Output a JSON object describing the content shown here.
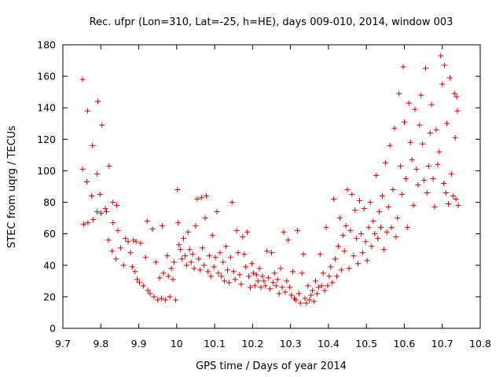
{
  "chart_data": {
    "type": "scatter",
    "title": "Rec. ufpr (Lon=310, Lat=-25, h=HE), days 009-010, 2014, window 003",
    "xlabel": "GPS time / Days of year 2014",
    "ylabel": "STEC from uqrg / TECUs",
    "xlim": [
      9.7,
      10.8
    ],
    "ylim": [
      0,
      180
    ],
    "xticks": [
      "9.7",
      "9.8",
      "9.9",
      "10",
      "10.1",
      "10.2",
      "10.3",
      "10.4",
      "10.5",
      "10.6",
      "10.7",
      "10.8"
    ],
    "yticks": [
      "0",
      "20",
      "40",
      "60",
      "80",
      "100",
      "120",
      "140",
      "160",
      "180"
    ],
    "marker": "+",
    "series_color": "#d40000",
    "points": [
      [
        9.752,
        158
      ],
      [
        9.765,
        138
      ],
      [
        9.778,
        116
      ],
      [
        9.792,
        144
      ],
      [
        9.803,
        129
      ],
      [
        9.822,
        103
      ],
      [
        9.752,
        101
      ],
      [
        9.763,
        93
      ],
      [
        9.776,
        84
      ],
      [
        9.79,
        98
      ],
      [
        9.798,
        85
      ],
      [
        9.815,
        74
      ],
      [
        9.832,
        80
      ],
      [
        9.842,
        78
      ],
      [
        9.755,
        66
      ],
      [
        9.766,
        67
      ],
      [
        9.78,
        69
      ],
      [
        9.79,
        74
      ],
      [
        9.8,
        73
      ],
      [
        9.812,
        76
      ],
      [
        9.82,
        56
      ],
      [
        9.832,
        67
      ],
      [
        9.845,
        62
      ],
      [
        9.83,
        49
      ],
      [
        9.84,
        44
      ],
      [
        9.852,
        51
      ],
      [
        9.86,
        40
      ],
      [
        9.865,
        57
      ],
      [
        9.872,
        55
      ],
      [
        9.878,
        48
      ],
      [
        9.883,
        39
      ],
      [
        9.886,
        56
      ],
      [
        9.89,
        36
      ],
      [
        9.893,
        55
      ],
      [
        9.896,
        31
      ],
      [
        9.902,
        29
      ],
      [
        9.905,
        54
      ],
      [
        9.912,
        27
      ],
      [
        9.918,
        45
      ],
      [
        9.922,
        68
      ],
      [
        9.924,
        24
      ],
      [
        9.93,
        22
      ],
      [
        9.936,
        63
      ],
      [
        9.94,
        20
      ],
      [
        9.945,
        42
      ],
      [
        9.95,
        18
      ],
      [
        9.955,
        32
      ],
      [
        9.96,
        19
      ],
      [
        9.962,
        65
      ],
      [
        9.965,
        35
      ],
      [
        9.97,
        18
      ],
      [
        9.975,
        46
      ],
      [
        9.978,
        33
      ],
      [
        9.982,
        20
      ],
      [
        9.986,
        38
      ],
      [
        9.99,
        31
      ],
      [
        9.993,
        42
      ],
      [
        9.997,
        18
      ],
      [
        10.002,
        88
      ],
      [
        10.004,
        67
      ],
      [
        10.006,
        53
      ],
      [
        10.01,
        50
      ],
      [
        10.014,
        44
      ],
      [
        10.018,
        57
      ],
      [
        10.022,
        46
      ],
      [
        10.026,
        40
      ],
      [
        10.03,
        61
      ],
      [
        10.034,
        50
      ],
      [
        10.038,
        42
      ],
      [
        10.042,
        47
      ],
      [
        10.046,
        38
      ],
      [
        10.05,
        65
      ],
      [
        10.054,
        82
      ],
      [
        10.058,
        44
      ],
      [
        10.062,
        37
      ],
      [
        10.065,
        83
      ],
      [
        10.068,
        51
      ],
      [
        10.072,
        40
      ],
      [
        10.075,
        70
      ],
      [
        10.078,
        84
      ],
      [
        10.082,
        36
      ],
      [
        10.086,
        46
      ],
      [
        10.09,
        33
      ],
      [
        10.094,
        59
      ],
      [
        10.098,
        39
      ],
      [
        10.102,
        45
      ],
      [
        10.106,
        74
      ],
      [
        10.11,
        35
      ],
      [
        10.114,
        48
      ],
      [
        10.118,
        33
      ],
      [
        10.122,
        42
      ],
      [
        10.126,
        30
      ],
      [
        10.13,
        52
      ],
      [
        10.134,
        37
      ],
      [
        10.138,
        29
      ],
      [
        10.142,
        45
      ],
      [
        10.146,
        80
      ],
      [
        10.15,
        36
      ],
      [
        10.154,
        31
      ],
      [
        10.158,
        62
      ],
      [
        10.162,
        48
      ],
      [
        10.166,
        34
      ],
      [
        10.17,
        28
      ],
      [
        10.174,
        58
      ],
      [
        10.178,
        47
      ],
      [
        10.182,
        39
      ],
      [
        10.186,
        61
      ],
      [
        10.19,
        33
      ],
      [
        10.194,
        26
      ],
      [
        10.198,
        41
      ],
      [
        10.202,
        35
      ],
      [
        10.206,
        27
      ],
      [
        10.21,
        34
      ],
      [
        10.214,
        30
      ],
      [
        10.218,
        38
      ],
      [
        10.222,
        26
      ],
      [
        10.226,
        33
      ],
      [
        10.23,
        30
      ],
      [
        10.234,
        27
      ],
      [
        10.238,
        49
      ],
      [
        10.242,
        32
      ],
      [
        10.246,
        25
      ],
      [
        10.25,
        48
      ],
      [
        10.254,
        29
      ],
      [
        10.258,
        35
      ],
      [
        10.262,
        27
      ],
      [
        10.266,
        31
      ],
      [
        10.27,
        22
      ],
      [
        10.274,
        38
      ],
      [
        10.278,
        26
      ],
      [
        10.282,
        61
      ],
      [
        10.286,
        23
      ],
      [
        10.29,
        30
      ],
      [
        10.294,
        56
      ],
      [
        10.298,
        26
      ],
      [
        10.302,
        21
      ],
      [
        10.306,
        36
      ],
      [
        10.31,
        19
      ],
      [
        10.314,
        18
      ],
      [
        10.318,
        62
      ],
      [
        10.322,
        22
      ],
      [
        10.326,
        16
      ],
      [
        10.33,
        35
      ],
      [
        10.334,
        47
      ],
      [
        10.338,
        19
      ],
      [
        10.342,
        16
      ],
      [
        10.346,
        27
      ],
      [
        10.35,
        18
      ],
      [
        10.354,
        21
      ],
      [
        10.358,
        24
      ],
      [
        10.362,
        17
      ],
      [
        10.366,
        30
      ],
      [
        10.37,
        22
      ],
      [
        10.374,
        26
      ],
      [
        10.378,
        47
      ],
      [
        10.382,
        27
      ],
      [
        10.386,
        35
      ],
      [
        10.39,
        24
      ],
      [
        10.394,
        64
      ],
      [
        10.398,
        27
      ],
      [
        10.402,
        33
      ],
      [
        10.406,
        39
      ],
      [
        10.41,
        29
      ],
      [
        10.414,
        82
      ],
      [
        10.418,
        44
      ],
      [
        10.422,
        33
      ],
      [
        10.426,
        52
      ],
      [
        10.43,
        70
      ],
      [
        10.434,
        37
      ],
      [
        10.438,
        59
      ],
      [
        10.442,
        49
      ],
      [
        10.446,
        65
      ],
      [
        10.45,
        88
      ],
      [
        10.454,
        38
      ],
      [
        10.458,
        62
      ],
      [
        10.462,
        85
      ],
      [
        10.466,
        46
      ],
      [
        10.47,
        75
      ],
      [
        10.474,
        57
      ],
      [
        10.478,
        41
      ],
      [
        10.482,
        81
      ],
      [
        10.486,
        60
      ],
      [
        10.49,
        48
      ],
      [
        10.494,
        76
      ],
      [
        10.498,
        55
      ],
      [
        10.502,
        43
      ],
      [
        10.506,
        64
      ],
      [
        10.51,
        80
      ],
      [
        10.514,
        52
      ],
      [
        10.518,
        68
      ],
      [
        10.522,
        60
      ],
      [
        10.526,
        97
      ],
      [
        10.53,
        57
      ],
      [
        10.534,
        74
      ],
      [
        10.538,
        64
      ],
      [
        10.542,
        84
      ],
      [
        10.546,
        50
      ],
      [
        10.55,
        105
      ],
      [
        10.554,
        61
      ],
      [
        10.558,
        77
      ],
      [
        10.562,
        116
      ],
      [
        10.566,
        64
      ],
      [
        10.57,
        88
      ],
      [
        10.574,
        127
      ],
      [
        10.578,
        58
      ],
      [
        10.582,
        70
      ],
      [
        10.586,
        149
      ],
      [
        10.59,
        103
      ],
      [
        10.594,
        85
      ],
      [
        10.597,
        166
      ],
      [
        10.6,
        131
      ],
      [
        10.604,
        95
      ],
      [
        10.608,
        64
      ],
      [
        10.612,
        143
      ],
      [
        10.616,
        118
      ],
      [
        10.62,
        107
      ],
      [
        10.624,
        78
      ],
      [
        10.628,
        139
      ],
      [
        10.632,
        101
      ],
      [
        10.636,
        91
      ],
      [
        10.64,
        129
      ],
      [
        10.644,
        148
      ],
      [
        10.648,
        117
      ],
      [
        10.652,
        94
      ],
      [
        10.656,
        165
      ],
      [
        10.66,
        86
      ],
      [
        10.664,
        103
      ],
      [
        10.668,
        124
      ],
      [
        10.672,
        142
      ],
      [
        10.676,
        95
      ],
      [
        10.68,
        77
      ],
      [
        10.684,
        126
      ],
      [
        10.688,
        104
      ],
      [
        10.692,
        112
      ],
      [
        10.696,
        173
      ],
      [
        10.7,
        155
      ],
      [
        10.704,
        92
      ],
      [
        10.706,
        167
      ],
      [
        10.71,
        86
      ],
      [
        10.712,
        130
      ],
      [
        10.716,
        79
      ],
      [
        10.72,
        159
      ],
      [
        10.724,
        98
      ],
      [
        10.728,
        84
      ],
      [
        10.732,
        149
      ],
      [
        10.734,
        121
      ],
      [
        10.736,
        82
      ],
      [
        10.738,
        147
      ],
      [
        10.74,
        138
      ],
      [
        10.742,
        78
      ]
    ]
  }
}
